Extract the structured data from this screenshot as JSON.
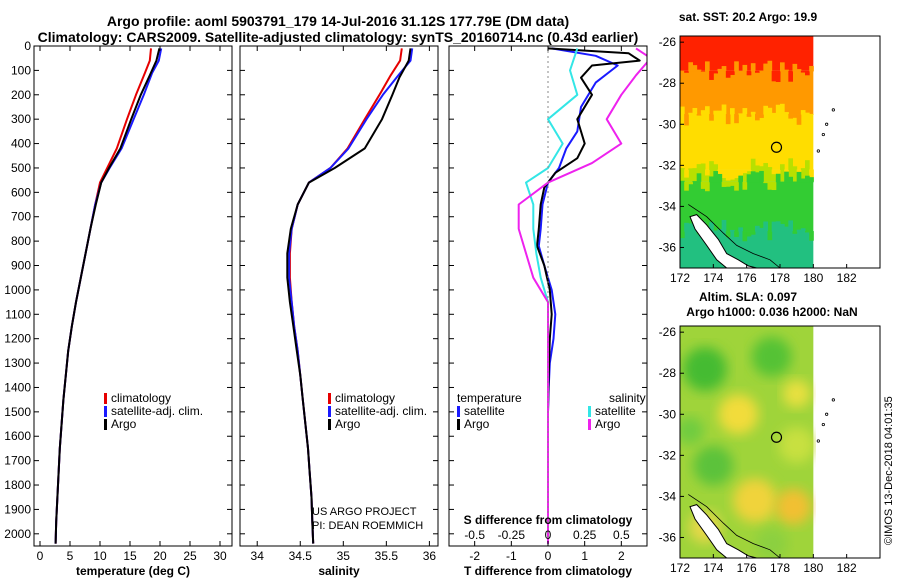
{
  "figure": {
    "title_line1": "Argo profile: aoml 5903791_179 14-Jul-2016 31.12S 177.79E (DM data)",
    "title_line2": "Climatology: CARS2009. Satellite-adjusted climatology: synTS_20160714.nc (0.43d earlier)",
    "credit_line1": "US ARGO PROJECT",
    "credit_line2": "PI: DEAN ROEMMICH",
    "stamp": "©IMOS 13-Dec-2018 04:01:35",
    "colors": {
      "climatology": "#e60000",
      "satellite": "#1a1aff",
      "argo": "#000000",
      "satellite_salinity": "#33e6e6",
      "argo_salinity": "#ee22ee"
    }
  },
  "chart_data": [
    {
      "type": "line",
      "id": "temperature",
      "xlabel": "temperature (deg C)",
      "xlim": [
        -1,
        32
      ],
      "ylim": [
        2050,
        0
      ],
      "xticks": [
        0,
        5,
        10,
        15,
        20,
        25,
        30
      ],
      "yticks": [
        0,
        100,
        200,
        300,
        400,
        500,
        600,
        700,
        800,
        900,
        1000,
        1100,
        1200,
        1300,
        1400,
        1500,
        1600,
        1700,
        1800,
        1900,
        2000
      ],
      "legend": [
        "climatology",
        "satellite-adj. clim.",
        "Argo"
      ],
      "series": [
        {
          "name": "climatology",
          "color": "#e60000",
          "points": [
            [
              18.5,
              10
            ],
            [
              18.3,
              60
            ],
            [
              17.5,
              110
            ],
            [
              16,
              200
            ],
            [
              14.5,
              300
            ],
            [
              12.8,
              420
            ],
            [
              11.2,
              500
            ],
            [
              10,
              560
            ],
            [
              9.2,
              650
            ],
            [
              8.4,
              750
            ],
            [
              7.6,
              850
            ],
            [
              6.8,
              950
            ],
            [
              6.0,
              1050
            ],
            [
              5.3,
              1150
            ],
            [
              4.7,
              1250
            ],
            [
              4.3,
              1350
            ],
            [
              3.9,
              1450
            ],
            [
              3.6,
              1550
            ],
            [
              3.3,
              1650
            ],
            [
              3.1,
              1750
            ],
            [
              2.9,
              1850
            ],
            [
              2.7,
              1950
            ],
            [
              2.6,
              2040
            ]
          ]
        },
        {
          "name": "satellite-adj. clim.",
          "color": "#1a1aff",
          "points": [
            [
              20.2,
              10
            ],
            [
              19.8,
              60
            ],
            [
              18.7,
              110
            ],
            [
              17.3,
              200
            ],
            [
              15.6,
              300
            ],
            [
              13.6,
              420
            ],
            [
              11.6,
              500
            ],
            [
              10.2,
              560
            ],
            [
              9.2,
              650
            ],
            [
              8.4,
              750
            ],
            [
              7.6,
              850
            ],
            [
              6.8,
              950
            ],
            [
              6.0,
              1050
            ],
            [
              5.3,
              1150
            ],
            [
              4.7,
              1250
            ],
            [
              4.3,
              1350
            ],
            [
              3.9,
              1450
            ],
            [
              3.6,
              1550
            ],
            [
              3.3,
              1650
            ],
            [
              3.1,
              1750
            ],
            [
              2.9,
              1850
            ],
            [
              2.7,
              1950
            ],
            [
              2.6,
              2040
            ]
          ]
        },
        {
          "name": "Argo",
          "color": "#000000",
          "points": [
            [
              19.9,
              10
            ],
            [
              19.4,
              60
            ],
            [
              18.3,
              120
            ],
            [
              16.8,
              200
            ],
            [
              15.2,
              300
            ],
            [
              13.4,
              420
            ],
            [
              11.5,
              500
            ],
            [
              10.2,
              560
            ],
            [
              9.3,
              650
            ],
            [
              8.4,
              750
            ],
            [
              7.6,
              850
            ],
            [
              6.8,
              950
            ],
            [
              6.0,
              1050
            ],
            [
              5.3,
              1150
            ],
            [
              4.7,
              1250
            ],
            [
              4.3,
              1350
            ],
            [
              3.9,
              1450
            ],
            [
              3.6,
              1550
            ],
            [
              3.3,
              1650
            ],
            [
              3.1,
              1750
            ],
            [
              2.9,
              1850
            ],
            [
              2.7,
              1950
            ],
            [
              2.6,
              2040
            ]
          ]
        }
      ]
    },
    {
      "type": "line",
      "id": "salinity",
      "xlabel": "salinity",
      "xlim": [
        33.8,
        36.1
      ],
      "ylim": [
        2050,
        0
      ],
      "xticks": [
        34,
        34.5,
        35,
        35.5,
        36
      ],
      "legend": [
        "climatology",
        "satellite-adj. clim.",
        "Argo"
      ],
      "series": [
        {
          "name": "climatology",
          "color": "#e60000",
          "points": [
            [
              35.68,
              10
            ],
            [
              35.66,
              60
            ],
            [
              35.55,
              120
            ],
            [
              35.42,
              200
            ],
            [
              35.25,
              300
            ],
            [
              35.05,
              420
            ],
            [
              34.85,
              500
            ],
            [
              34.6,
              560
            ],
            [
              34.47,
              650
            ],
            [
              34.4,
              750
            ],
            [
              34.38,
              850
            ],
            [
              34.38,
              950
            ],
            [
              34.4,
              1050
            ],
            [
              34.43,
              1150
            ],
            [
              34.47,
              1250
            ],
            [
              34.5,
              1350
            ],
            [
              34.53,
              1450
            ],
            [
              34.56,
              1550
            ],
            [
              34.59,
              1650
            ],
            [
              34.61,
              1750
            ],
            [
              34.63,
              1850
            ],
            [
              34.64,
              1950
            ],
            [
              34.65,
              2040
            ]
          ]
        },
        {
          "name": "satellite-adj. clim.",
          "color": "#1a1aff",
          "points": [
            [
              35.8,
              10
            ],
            [
              35.78,
              60
            ],
            [
              35.64,
              120
            ],
            [
              35.46,
              200
            ],
            [
              35.27,
              300
            ],
            [
              35.06,
              420
            ],
            [
              34.85,
              500
            ],
            [
              34.6,
              560
            ],
            [
              34.47,
              650
            ],
            [
              34.4,
              750
            ],
            [
              34.37,
              850
            ],
            [
              34.37,
              950
            ],
            [
              34.4,
              1050
            ],
            [
              34.43,
              1150
            ],
            [
              34.47,
              1250
            ],
            [
              34.5,
              1350
            ],
            [
              34.53,
              1450
            ],
            [
              34.56,
              1550
            ],
            [
              34.59,
              1650
            ],
            [
              34.61,
              1750
            ],
            [
              34.63,
              1850
            ],
            [
              34.64,
              1950
            ],
            [
              34.65,
              2040
            ]
          ]
        },
        {
          "name": "Argo",
          "color": "#000000",
          "points": [
            [
              35.78,
              10
            ],
            [
              35.76,
              60
            ],
            [
              35.65,
              130
            ],
            [
              35.57,
              200
            ],
            [
              35.45,
              300
            ],
            [
              35.25,
              420
            ],
            [
              34.9,
              500
            ],
            [
              34.6,
              560
            ],
            [
              34.47,
              650
            ],
            [
              34.39,
              750
            ],
            [
              34.35,
              850
            ],
            [
              34.35,
              950
            ],
            [
              34.38,
              1050
            ],
            [
              34.42,
              1150
            ],
            [
              34.46,
              1250
            ],
            [
              34.5,
              1350
            ],
            [
              34.53,
              1450
            ],
            [
              34.56,
              1550
            ],
            [
              34.59,
              1650
            ],
            [
              34.61,
              1750
            ],
            [
              34.63,
              1850
            ],
            [
              34.64,
              1950
            ],
            [
              34.65,
              2040
            ]
          ]
        }
      ]
    },
    {
      "type": "line",
      "id": "difference",
      "xlabel": "T difference from climatology",
      "xlabel_top": "S difference from climatology",
      "xlim": [
        -2.7,
        2.7
      ],
      "ylim": [
        2050,
        0
      ],
      "xticks": [
        -2,
        -1,
        0,
        1,
        2
      ],
      "s_ticks": [
        "-0.5",
        "-0.25",
        "0",
        "0.25",
        "0.5"
      ],
      "s_scale": 4,
      "legend_temperature_title": "temperature",
      "legend_salinity_title": "salinity",
      "legend_temperature": [
        "satellite",
        "Argo"
      ],
      "legend_salinity": [
        "satellite",
        "Argo"
      ],
      "series": [
        {
          "name": "satellite",
          "color": "#1a1aff",
          "points": [
            [
              0.1,
              10
            ],
            [
              1.3,
              40
            ],
            [
              1.9,
              80
            ],
            [
              1.3,
              150
            ],
            [
              0.9,
              250
            ],
            [
              0.8,
              350
            ],
            [
              0.5,
              420
            ],
            [
              0.3,
              500
            ],
            [
              0.0,
              560
            ],
            [
              -0.15,
              650
            ],
            [
              -0.2,
              750
            ],
            [
              -0.25,
              820
            ],
            [
              -0.1,
              900
            ],
            [
              0.1,
              1000
            ],
            [
              0.2,
              1100
            ],
            [
              0.15,
              1200
            ],
            [
              0.05,
              1300
            ],
            [
              0.02,
              1400
            ],
            [
              0.0,
              1500
            ],
            [
              0.0,
              1700
            ],
            [
              0.0,
              2040
            ]
          ]
        },
        {
          "name": "Argo",
          "color": "#000000",
          "points": [
            [
              0.0,
              10
            ],
            [
              2.2,
              30
            ],
            [
              2.5,
              60
            ],
            [
              1.2,
              80
            ],
            [
              0.9,
              130
            ],
            [
              1.2,
              200
            ],
            [
              0.8,
              300
            ],
            [
              1.0,
              400
            ],
            [
              0.8,
              460
            ],
            [
              0.2,
              520
            ],
            [
              -0.1,
              580
            ],
            [
              -0.2,
              650
            ],
            [
              -0.25,
              750
            ],
            [
              -0.3,
              820
            ],
            [
              -0.1,
              900
            ],
            [
              0.05,
              1000
            ],
            [
              0.1,
              1100
            ],
            [
              0.05,
              1200
            ],
            [
              0.03,
              1300
            ],
            [
              0.01,
              1400
            ],
            [
              0.0,
              1500
            ],
            [
              0.0,
              1700
            ],
            [
              0.0,
              2040
            ]
          ]
        },
        {
          "name": "satellite",
          "color": "#33e6e6",
          "points": [
            [
              0.2,
              10
            ],
            [
              0.15,
              100
            ],
            [
              0.2,
              200
            ],
            [
              0.0,
              300
            ],
            [
              0.1,
              400
            ],
            [
              0.0,
              500
            ],
            [
              -0.15,
              560
            ],
            [
              -0.1,
              650
            ],
            [
              -0.1,
              750
            ],
            [
              -0.08,
              850
            ],
            [
              -0.05,
              950
            ],
            [
              0.0,
              1050
            ],
            [
              0.0,
              1200
            ],
            [
              0.0,
              1400
            ],
            [
              0.0,
              1600
            ],
            [
              0.0,
              2040
            ]
          ]
        },
        {
          "name": "Argo",
          "color": "#ee22ee",
          "points": [
            [
              0.6,
              10
            ],
            [
              0.7,
              50
            ],
            [
              0.6,
              120
            ],
            [
              0.5,
              200
            ],
            [
              0.4,
              300
            ],
            [
              0.5,
              400
            ],
            [
              0.3,
              480
            ],
            [
              0.0,
              560
            ],
            [
              -0.2,
              650
            ],
            [
              -0.2,
              750
            ],
            [
              -0.15,
              850
            ],
            [
              -0.1,
              950
            ],
            [
              0.0,
              1050
            ],
            [
              0.0,
              1200
            ],
            [
              0.0,
              1400
            ],
            [
              0.0,
              2040
            ]
          ]
        }
      ]
    },
    {
      "type": "heatmap",
      "id": "sst_map",
      "title": "sat. SST: 20.2 Argo: 19.9",
      "xlim": [
        172,
        184
      ],
      "ylim": [
        -37,
        -25.7
      ],
      "xticks": [
        172,
        174,
        176,
        178,
        180,
        182
      ],
      "yticks": [
        -26,
        -28,
        -30,
        -32,
        -34,
        -36
      ],
      "data_extent_lon": [
        172,
        180
      ],
      "profile": {
        "lon": 177.79,
        "lat": -31.12
      },
      "bands": [
        {
          "lat": [
            -25.7,
            -27.4
          ],
          "color": "#ff2200"
        },
        {
          "lat": [
            -27.4,
            -29.5
          ],
          "color": "#ff9900"
        },
        {
          "lat": [
            -29.5,
            -32.2
          ],
          "color": "#ffdd00"
        },
        {
          "lat": [
            -32.2,
            -32.8
          ],
          "color": "#b8e000"
        },
        {
          "lat": [
            -32.8,
            -35.2
          ],
          "color": "#33cc33"
        },
        {
          "lat": [
            -35.2,
            -37
          ],
          "color": "#22c080"
        }
      ]
    },
    {
      "type": "heatmap",
      "id": "sla_map",
      "title_line1": "Altim. SLA: 0.097",
      "title_line2": "Argo h1000: 0.036 h2000: NaN",
      "xlim": [
        172,
        184
      ],
      "ylim": [
        -37,
        -25.7
      ],
      "xticks": [
        172,
        174,
        176,
        178,
        180,
        182
      ],
      "yticks": [
        -26,
        -28,
        -30,
        -32,
        -34,
        -36
      ],
      "data_extent_lon": [
        172,
        180
      ],
      "profile": {
        "lon": 177.79,
        "lat": -31.12
      }
    }
  ]
}
